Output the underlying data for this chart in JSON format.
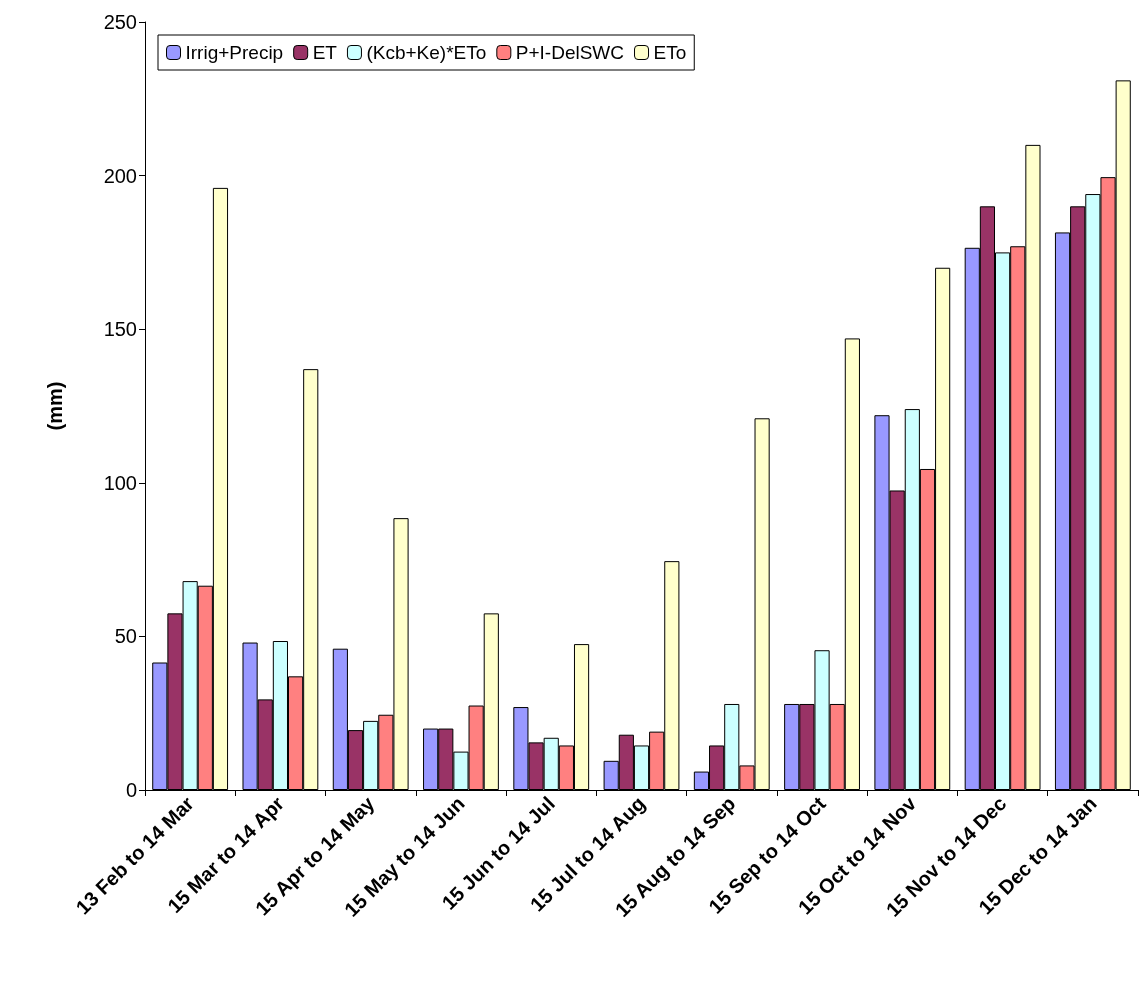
{
  "chart_data": {
    "type": "bar",
    "ylabel": "(mm)",
    "categories": [
      "13 Feb to 14 Mar",
      "15 Mar to 14 Apr",
      "15 Apr to 14 May",
      "15 May to 14 Jun",
      "15 Jun to 14 Jul",
      "15 Jul to 14 Aug",
      "15 Aug to 14 Sep",
      "15 Sep to 14 Oct",
      "15 Oct to 14 Nov",
      "15 Nov to 14 Dec",
      "15 Dec to 14 Jan"
    ],
    "series": [
      {
        "name": "Irrig+Precip",
        "color": "#9999ff",
        "values": [
          41.5,
          48,
          46,
          20,
          27,
          9.5,
          6,
          28,
          122,
          176.5,
          181.5
        ]
      },
      {
        "name": "ET",
        "color": "#993366",
        "values": [
          57.5,
          29.5,
          19.5,
          20,
          15.5,
          18,
          14.5,
          28,
          97.5,
          190,
          190
        ]
      },
      {
        "name": "(Kcb+Ke)*ETo",
        "color": "#ccffff",
        "values": [
          68,
          48.5,
          22.5,
          12.5,
          17,
          14.5,
          28,
          45.5,
          124,
          175,
          194
        ]
      },
      {
        "name": "P+I-DelSWC",
        "color": "#ff8080",
        "values": [
          66.5,
          37,
          24.5,
          27.5,
          14.5,
          19,
          8,
          28,
          104.5,
          177,
          199.5
        ]
      },
      {
        "name": "ETo",
        "color": "#ffffcc",
        "values": [
          196,
          137,
          88.5,
          57.5,
          47.5,
          74.5,
          121,
          147,
          170,
          210,
          231
        ]
      }
    ],
    "ylim": [
      0,
      250
    ],
    "yticks": [
      0,
      50,
      100,
      150,
      200,
      250
    ],
    "grid": false,
    "legend": "top left"
  }
}
